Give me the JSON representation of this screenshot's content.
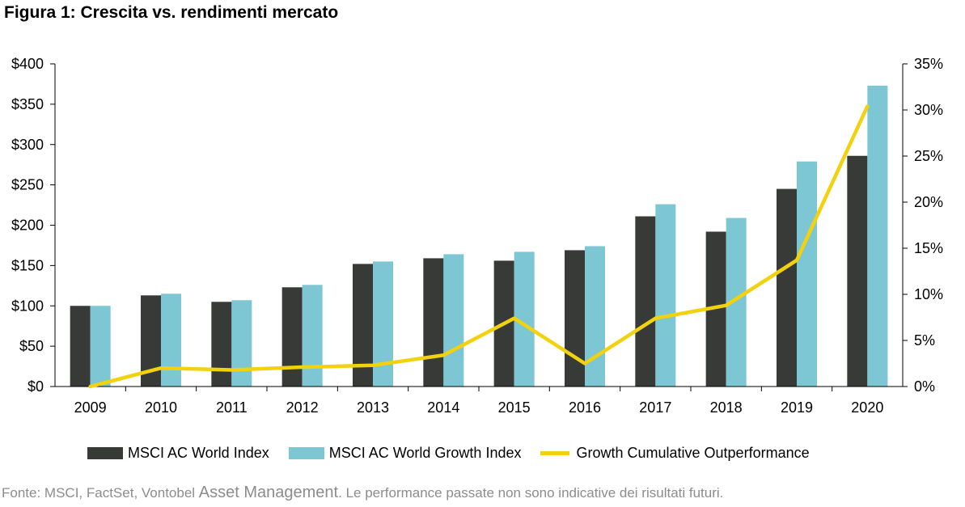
{
  "title": "Figura 1: Crescita vs. rendimenti mercato",
  "legend": {
    "series1": "MSCI AC World Index",
    "series2": "MSCI AC World Growth Index",
    "series3": "Growth Cumulative Outperformance"
  },
  "source": {
    "part1": "Fonte: MSCI, FactSet, Vontobel ",
    "part2": "Asset Management",
    "part3": ". Le performance passate non sono indicative dei risultati futuri."
  },
  "colors": {
    "world": "#383a38",
    "growth": "#7cc7d3",
    "outperformance": "#f2d10e",
    "axis": "#000000"
  },
  "chart_data": {
    "type": "bar",
    "categories": [
      "2009",
      "2010",
      "2011",
      "2012",
      "2013",
      "2014",
      "2015",
      "2016",
      "2017",
      "2018",
      "2019",
      "2020"
    ],
    "series": [
      {
        "name": "MSCI AC World Index",
        "type": "bar",
        "axis": "left",
        "values": [
          100,
          113,
          105,
          123,
          152,
          159,
          156,
          169,
          211,
          192,
          245,
          286
        ]
      },
      {
        "name": "MSCI AC World Growth Index",
        "type": "bar",
        "axis": "left",
        "values": [
          100,
          115,
          107,
          126,
          155,
          164,
          167,
          174,
          226,
          209,
          279,
          373
        ]
      },
      {
        "name": "Growth Cumulative Outperformance",
        "type": "line",
        "axis": "right",
        "values": [
          0.0,
          2.0,
          1.8,
          2.1,
          2.3,
          3.4,
          7.4,
          2.5,
          7.4,
          8.8,
          13.7,
          30.4
        ]
      }
    ],
    "y_left": {
      "min": 0,
      "max": 400,
      "step": 50,
      "ticks": [
        "$0",
        "$50",
        "$100",
        "$150",
        "$200",
        "$250",
        "$300",
        "$350",
        "$400"
      ]
    },
    "y_right": {
      "min": 0,
      "max": 35,
      "step": 5,
      "ticks": [
        "0%",
        "5%",
        "10%",
        "15%",
        "20%",
        "25%",
        "30%",
        "35%"
      ]
    },
    "grid": false,
    "legend_position": "bottom"
  }
}
